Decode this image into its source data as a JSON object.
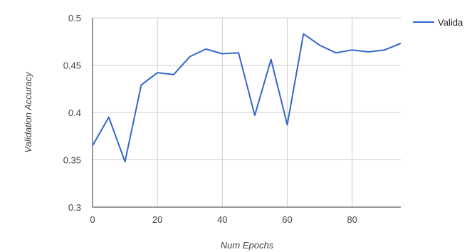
{
  "chart_data": {
    "type": "line",
    "title": "",
    "xlabel": "Num Epochs",
    "ylabel": "Validation Accuracy",
    "xlim": [
      0,
      95
    ],
    "ylim": [
      0.3,
      0.5
    ],
    "x_ticks": [
      0,
      20,
      40,
      60,
      80
    ],
    "y_ticks": [
      0.3,
      0.35,
      0.4,
      0.45,
      0.5
    ],
    "x_tick_labels": [
      "0",
      "20",
      "40",
      "60",
      "80"
    ],
    "y_tick_labels": [
      "0.3",
      "0.35",
      "0.4",
      "0.45",
      "0.5"
    ],
    "grid": true,
    "legend_position": "right",
    "series": [
      {
        "name": "Valida",
        "color": "#3366cc",
        "x": [
          0,
          5,
          10,
          15,
          20,
          25,
          30,
          35,
          40,
          45,
          50,
          55,
          60,
          65,
          70,
          75,
          80,
          85,
          90,
          95
        ],
        "y": [
          0.365,
          0.395,
          0.348,
          0.429,
          0.442,
          0.44,
          0.459,
          0.467,
          0.462,
          0.463,
          0.397,
          0.456,
          0.387,
          0.483,
          0.471,
          0.463,
          0.466,
          0.464,
          0.466,
          0.473
        ]
      }
    ]
  }
}
